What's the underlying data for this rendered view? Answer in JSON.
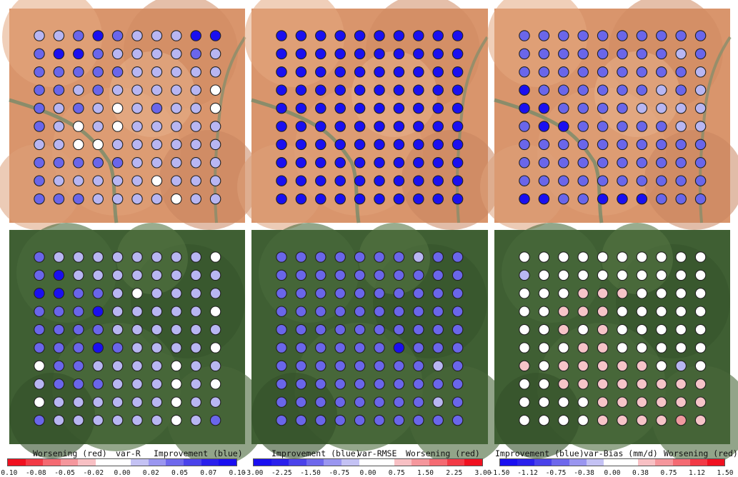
{
  "colors": {
    "blue_strong": "#1a0ff0",
    "blue_mid": "#6a66ea",
    "blue_light": "#b8b6f2",
    "white": "#ffffff",
    "pink_light": "#f6c4c8",
    "pink_mid": "#f09aa0",
    "red": "#f01020",
    "desert": "#d9956c",
    "savanna": "#3f5f33"
  },
  "colorbars": [
    {
      "title_left": "Worsening (red)",
      "title_mid": "var-R",
      "title_right": "Improvement (blue)",
      "ticks": [
        "-0.10",
        "-0.08",
        "-0.05",
        "-0.02",
        "0.00",
        "0.02",
        "0.05",
        "0.07",
        "0.10"
      ],
      "steps": [
        "#f01020",
        "#f23a46",
        "#f46a72",
        "#f5969c",
        "#f8c0c4",
        "#ffffff",
        "#ffffff",
        "#c4c2f4",
        "#9a96f0",
        "#6e68ec",
        "#4a42ea",
        "#2a20ec",
        "#1a0ff0"
      ]
    },
    {
      "title_left": "Improvement (blue)",
      "title_mid": "var-RMSE",
      "title_right": "Worsening (red)",
      "ticks": [
        "-3.00",
        "-2.25",
        "-1.50",
        "-0.75",
        "0.00",
        "0.75",
        "1.50",
        "2.25",
        "3.00"
      ],
      "steps": [
        "#1a0ff0",
        "#2a20ec",
        "#4a42ea",
        "#6e68ec",
        "#9a96f0",
        "#c4c2f4",
        "#ffffff",
        "#ffffff",
        "#f8c0c4",
        "#f5969c",
        "#f46a72",
        "#f23a46",
        "#f01020"
      ]
    },
    {
      "title_left": "Improvement (blue)",
      "title_mid": "var-Bias (mm/d)",
      "title_right": "Worsening (red)",
      "ticks": [
        "-1.50",
        "-1.12",
        "-0.75",
        "-0.38",
        "0.00",
        "0.38",
        "0.75",
        "1.12",
        "1.50"
      ],
      "steps": [
        "#1a0ff0",
        "#2a20ec",
        "#4a42ea",
        "#6e68ec",
        "#9a96f0",
        "#c4c2f4",
        "#ffffff",
        "#ffffff",
        "#f8c0c4",
        "#f5969c",
        "#f46a72",
        "#f23a46",
        "#f01020"
      ]
    }
  ],
  "panels": [
    {
      "name": "desert-var-r",
      "bg": "desert",
      "grid": [
        "LLMSMLLLSS",
        "MSSMLLLLML",
        "MMMMMLLLLL",
        "MMLMLLLLLW",
        "MLMLWLMLLW",
        "MLWLWLLLLL",
        "LLWWLLLLLL",
        "MMMMMLLLLL",
        "MLLLLLWLLL",
        "MMMLLLLWLL"
      ]
    },
    {
      "name": "desert-var-rmse",
      "bg": "desert",
      "grid": [
        "SSSSSSSSSS",
        "SSSSSSSSSS",
        "SSSSSSSSSS",
        "SSSSSSSSSS",
        "SSSSSSSSSS",
        "SSSSSSSSSS",
        "SSSSSSSSSS",
        "SSSSSSSSSS",
        "SSSSSSSSSS",
        "SSSSSSSSSS"
      ]
    },
    {
      "name": "desert-var-bias",
      "bg": "desert",
      "grid": [
        "MMMMMMMMMM",
        "MMMMMMMMLM",
        "MMMMMMMMML",
        "SMMMMMMLML",
        "SSMMMMLLLL",
        "MSSMMMMMLL",
        "MMMMMMMMMM",
        "MMMMMMMMMM",
        "MMMMMMMMMM",
        "SSMMSSSMMM"
      ]
    },
    {
      "name": "savanna-var-r",
      "bg": "savanna",
      "grid": [
        "MLLLLLLLLW",
        "MSLLLLLLLL",
        "SSMMLWLLLL",
        "MMMSLLLLLW",
        "MMMMLLLLLL",
        "MMMSMLLLLW",
        "WMMLLLLWLL",
        "LMMMLLLWLW",
        "WLLLLLLWLL",
        "MLLLLLLWLM"
      ]
    },
    {
      "name": "savanna-var-rmse",
      "bg": "savanna",
      "grid": [
        "MMMMMMMLMM",
        "MMMMMMMMMM",
        "MMMMMMMMMM",
        "MMMMMMMMMM",
        "MMMMMMMMMM",
        "MMMMMMSMMM",
        "MMMMMMMMLM",
        "MMMMMMMMMM",
        "MMMMMMMMLM",
        "MMMMMMMMMM"
      ]
    },
    {
      "name": "savanna-var-bias",
      "bg": "savanna",
      "grid": [
        "WWWWWWWWWW",
        "LWWWWWWWWW",
        "WWWPPPWWWW",
        "WWPPPWWWWW",
        "WWPWPWWWWW",
        "WWWPPWWWWW",
        "PWPPPPPWLW",
        "WWPPPPPPPP",
        "WWWWPPPPPP",
        "WWWWPPPPQP"
      ]
    }
  ]
}
